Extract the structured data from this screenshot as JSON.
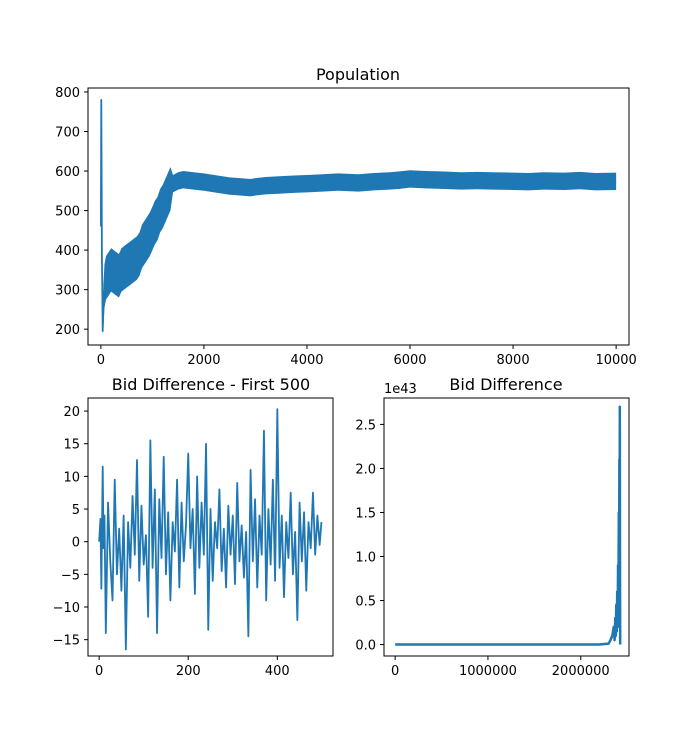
{
  "chart_data": [
    {
      "id": "population",
      "type": "line",
      "title": "Population",
      "xlabel": "",
      "ylabel": "",
      "xlim": [
        -250,
        10250
      ],
      "ylim": [
        160,
        810
      ],
      "xticks": [
        0,
        2000,
        4000,
        6000,
        8000,
        10000
      ],
      "yticks": [
        200,
        300,
        400,
        500,
        600,
        700,
        800
      ],
      "color": "#1f77b4",
      "series": [
        {
          "x": [
            0,
            8,
            15,
            20,
            28,
            35,
            50,
            70,
            100,
            150,
            200,
            250,
            300,
            350,
            400,
            450,
            500,
            550,
            600,
            650,
            700,
            750,
            800,
            850,
            900,
            950,
            1000,
            1050,
            1100,
            1150,
            1200,
            1250,
            1300,
            1350,
            1400,
            1500,
            1600,
            1800,
            2000,
            2200,
            2500,
            2700,
            2900,
            3000,
            3200,
            3500,
            3800,
            4000,
            4300,
            4600,
            5000,
            5300,
            5600,
            5800,
            6000,
            6300,
            6600,
            7000,
            7300,
            7600,
            8000,
            8300,
            8600,
            9000,
            9300,
            9600,
            10000
          ],
          "y": [
            460,
            780,
            560,
            380,
            300,
            195,
            260,
            310,
            330,
            340,
            350,
            345,
            340,
            335,
            350,
            355,
            360,
            365,
            370,
            375,
            380,
            390,
            410,
            420,
            430,
            440,
            455,
            470,
            480,
            500,
            510,
            525,
            540,
            555,
            568,
            575,
            578,
            575,
            572,
            568,
            562,
            560,
            558,
            560,
            563,
            565,
            567,
            568,
            570,
            572,
            570,
            573,
            575,
            577,
            580,
            578,
            577,
            575,
            576,
            575,
            574,
            573,
            575,
            574,
            576,
            573,
            574
          ]
        }
      ]
    },
    {
      "id": "bid_first_500",
      "type": "line",
      "title": "Bid Difference - First 500",
      "xlabel": "",
      "ylabel": "",
      "xlim": [
        -25,
        525
      ],
      "ylim": [
        -17.5,
        22
      ],
      "xticks": [
        0,
        200,
        400
      ],
      "yticks": [
        -15,
        -10,
        -5,
        0,
        5,
        10,
        15,
        20
      ],
      "color": "#1f77b4",
      "series": [
        {
          "x": [
            0,
            3,
            5,
            8,
            10,
            12,
            15,
            20,
            25,
            30,
            35,
            40,
            45,
            50,
            55,
            60,
            65,
            70,
            75,
            80,
            85,
            90,
            95,
            100,
            105,
            110,
            115,
            120,
            125,
            130,
            135,
            140,
            145,
            150,
            155,
            160,
            165,
            170,
            175,
            180,
            185,
            190,
            195,
            200,
            205,
            210,
            215,
            220,
            225,
            230,
            235,
            240,
            245,
            250,
            255,
            260,
            265,
            270,
            275,
            280,
            285,
            290,
            295,
            300,
            305,
            310,
            315,
            320,
            325,
            330,
            335,
            340,
            345,
            350,
            355,
            360,
            365,
            370,
            375,
            380,
            385,
            390,
            395,
            400,
            405,
            410,
            415,
            420,
            425,
            430,
            435,
            440,
            445,
            450,
            455,
            460,
            465,
            470,
            475,
            480,
            485,
            490,
            495,
            499
          ],
          "y": [
            0,
            3.5,
            -7.2,
            11.5,
            -1.0,
            4.0,
            -14.0,
            6.0,
            -3.0,
            -9.0,
            9.5,
            -5.0,
            2.0,
            -7.5,
            4.0,
            -16.5,
            3.0,
            -4.0,
            7.0,
            -2.0,
            12.5,
            -6.0,
            5.5,
            -3.5,
            1.0,
            -11.5,
            15.5,
            -4.0,
            8.0,
            -14.0,
            6.5,
            -2.5,
            13.0,
            -5.0,
            4.5,
            -9.0,
            3.0,
            -1.5,
            9.5,
            -7.0,
            6.0,
            -3.0,
            2.5,
            13.5,
            -1.0,
            5.0,
            -8.0,
            10.0,
            -4.0,
            6.0,
            -2.0,
            15.0,
            -13.5,
            5.0,
            -6.0,
            3.0,
            -1.0,
            8.0,
            -4.5,
            2.0,
            -7.0,
            5.5,
            -2.0,
            4.0,
            -6.5,
            9.0,
            -3.0,
            2.5,
            -5.5,
            1.5,
            -14.5,
            11.0,
            -3.0,
            6.5,
            -7.0,
            4.0,
            -2.0,
            17.0,
            -9.0,
            5.0,
            -3.5,
            9.5,
            -6.0,
            20.3,
            -4.0,
            4.0,
            -8.5,
            3.0,
            -2.5,
            7.5,
            -5.0,
            1.5,
            -12.0,
            6.0,
            -3.0,
            4.5,
            -7.5,
            3.0,
            -1.0,
            7.5,
            -2.0,
            4.0,
            -0.5,
            3.0
          ]
        }
      ]
    },
    {
      "id": "bid_all",
      "type": "line",
      "title": "Bid Difference",
      "offset_label": "1e43",
      "xlabel": "",
      "ylabel": "",
      "xlim": [
        -120000,
        2520000
      ],
      "ylim": [
        -0.13,
        2.8
      ],
      "xticks": [
        0,
        1000000,
        2000000
      ],
      "yticks": [
        0.0,
        0.5,
        1.0,
        1.5,
        2.0,
        2.5
      ],
      "ytick_labels": [
        "0.0",
        "0.5",
        "1.0",
        "1.5",
        "2.0",
        "2.5"
      ],
      "color": "#1f77b4",
      "series": [
        {
          "x": [
            0,
            500000,
            1000000,
            1500000,
            2000000,
            2200000,
            2300000,
            2320000,
            2340000,
            2355000,
            2365000,
            2372000,
            2378000,
            2383000,
            2388000,
            2393000,
            2398000,
            2402000,
            2406000,
            2410000,
            2413000,
            2416000,
            2419000,
            2421000,
            2423000,
            2425000
          ],
          "y": [
            0,
            0,
            0,
            0,
            0,
            0.0,
            0.01,
            0.05,
            0.1,
            0.2,
            0.05,
            0.3,
            0.1,
            0.45,
            0.15,
            0.6,
            0.2,
            0.9,
            0.3,
            1.5,
            0.4,
            2.1,
            0.6,
            2.7,
            1.0,
            0.0
          ]
        }
      ]
    }
  ]
}
